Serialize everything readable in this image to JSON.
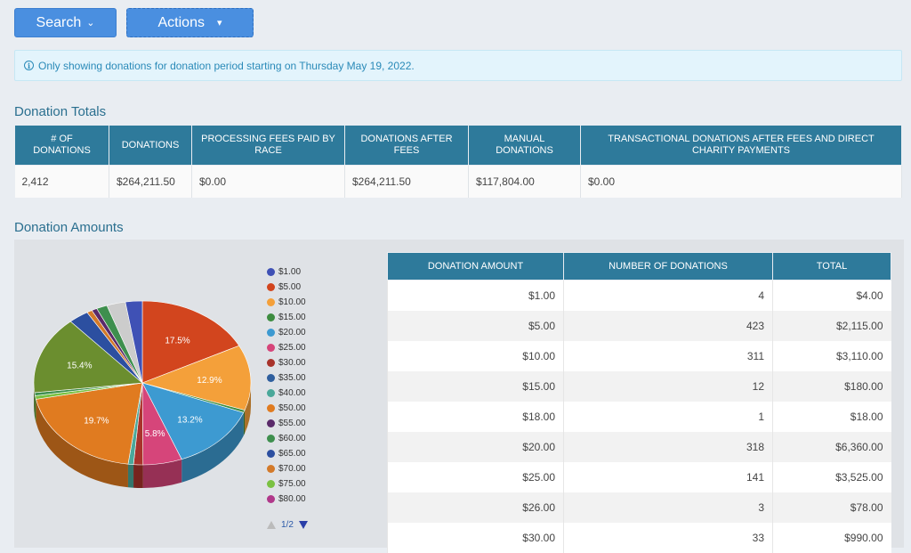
{
  "toolbar": {
    "search_label": "Search",
    "actions_label": "Actions"
  },
  "alert": {
    "text": "Only showing donations for donation period starting on Thursday May 19, 2022."
  },
  "totals": {
    "title": "Donation Totals",
    "headers": [
      "# of donations",
      "Donations",
      "Processing fees paid by race",
      "Donations after fees",
      "Manual donations",
      "Transactional donations after fees and direct charity payments"
    ],
    "row": [
      "2,412",
      "$264,211.50",
      "$0.00",
      "$264,211.50",
      "$117,804.00",
      "$0.00"
    ]
  },
  "amounts": {
    "title": "Donation Amounts",
    "headers": [
      "Donation Amount",
      "Number of Donations",
      "Total"
    ],
    "rows": [
      [
        "$1.00",
        "4",
        "$4.00"
      ],
      [
        "$5.00",
        "423",
        "$2,115.00"
      ],
      [
        "$10.00",
        "311",
        "$3,110.00"
      ],
      [
        "$15.00",
        "12",
        "$180.00"
      ],
      [
        "$18.00",
        "1",
        "$18.00"
      ],
      [
        "$20.00",
        "318",
        "$6,360.00"
      ],
      [
        "$25.00",
        "141",
        "$3,525.00"
      ],
      [
        "$26.00",
        "3",
        "$78.00"
      ],
      [
        "$30.00",
        "33",
        "$990.00"
      ]
    ]
  },
  "legend": {
    "items": [
      {
        "label": "$1.00",
        "color": "#3f51b5"
      },
      {
        "label": "$5.00",
        "color": "#d2451e"
      },
      {
        "label": "$10.00",
        "color": "#f4a03a"
      },
      {
        "label": "$15.00",
        "color": "#3d8c40"
      },
      {
        "label": "$20.00",
        "color": "#3d9ad1"
      },
      {
        "label": "$25.00",
        "color": "#d6457a"
      },
      {
        "label": "$30.00",
        "color": "#a8332b"
      },
      {
        "label": "$35.00",
        "color": "#2f5f9e"
      },
      {
        "label": "$40.00",
        "color": "#4aa89a"
      },
      {
        "label": "$50.00",
        "color": "#e07b20"
      },
      {
        "label": "$55.00",
        "color": "#5a2a6a"
      },
      {
        "label": "$60.00",
        "color": "#3e8f4e"
      },
      {
        "label": "$65.00",
        "color": "#2c4fa0"
      },
      {
        "label": "$70.00",
        "color": "#d37a2a"
      },
      {
        "label": "$75.00",
        "color": "#7ac142"
      },
      {
        "label": "$80.00",
        "color": "#b0388a"
      }
    ],
    "page": "1/2"
  },
  "pie": {
    "slices": [
      {
        "pct": 17.5,
        "color": "#d2451e",
        "label": "17.5%"
      },
      {
        "pct": 12.9,
        "color": "#f4a03a",
        "label": "12.9%"
      },
      {
        "pct": 0.5,
        "color": "#3d8c40",
        "label": ""
      },
      {
        "pct": 13.2,
        "color": "#3d9ad1",
        "label": "13.2%"
      },
      {
        "pct": 5.8,
        "color": "#d6457a",
        "label": "5.8%"
      },
      {
        "pct": 1.4,
        "color": "#a8332b",
        "label": ""
      },
      {
        "pct": 0.8,
        "color": "#4aa89a",
        "label": ""
      },
      {
        "pct": 19.7,
        "color": "#e07b20",
        "label": "19.7%"
      },
      {
        "pct": 0.7,
        "color": "#7ac142",
        "label": ""
      },
      {
        "pct": 0.6,
        "color": "#3e8f4e",
        "label": ""
      },
      {
        "pct": 15.4,
        "color": "#6b8e2f",
        "label": "15.4%"
      },
      {
        "pct": 3.0,
        "color": "#2c4fa0",
        "label": ""
      },
      {
        "pct": 0.8,
        "color": "#d37a2a",
        "label": ""
      },
      {
        "pct": 0.8,
        "color": "#5a2a6a",
        "label": ""
      },
      {
        "pct": 1.6,
        "color": "#3e8f4e",
        "label": ""
      },
      {
        "pct": 2.8,
        "color": "#cccccc",
        "label": ""
      },
      {
        "pct": 2.5,
        "color": "#3f51b5",
        "label": ""
      }
    ]
  }
}
